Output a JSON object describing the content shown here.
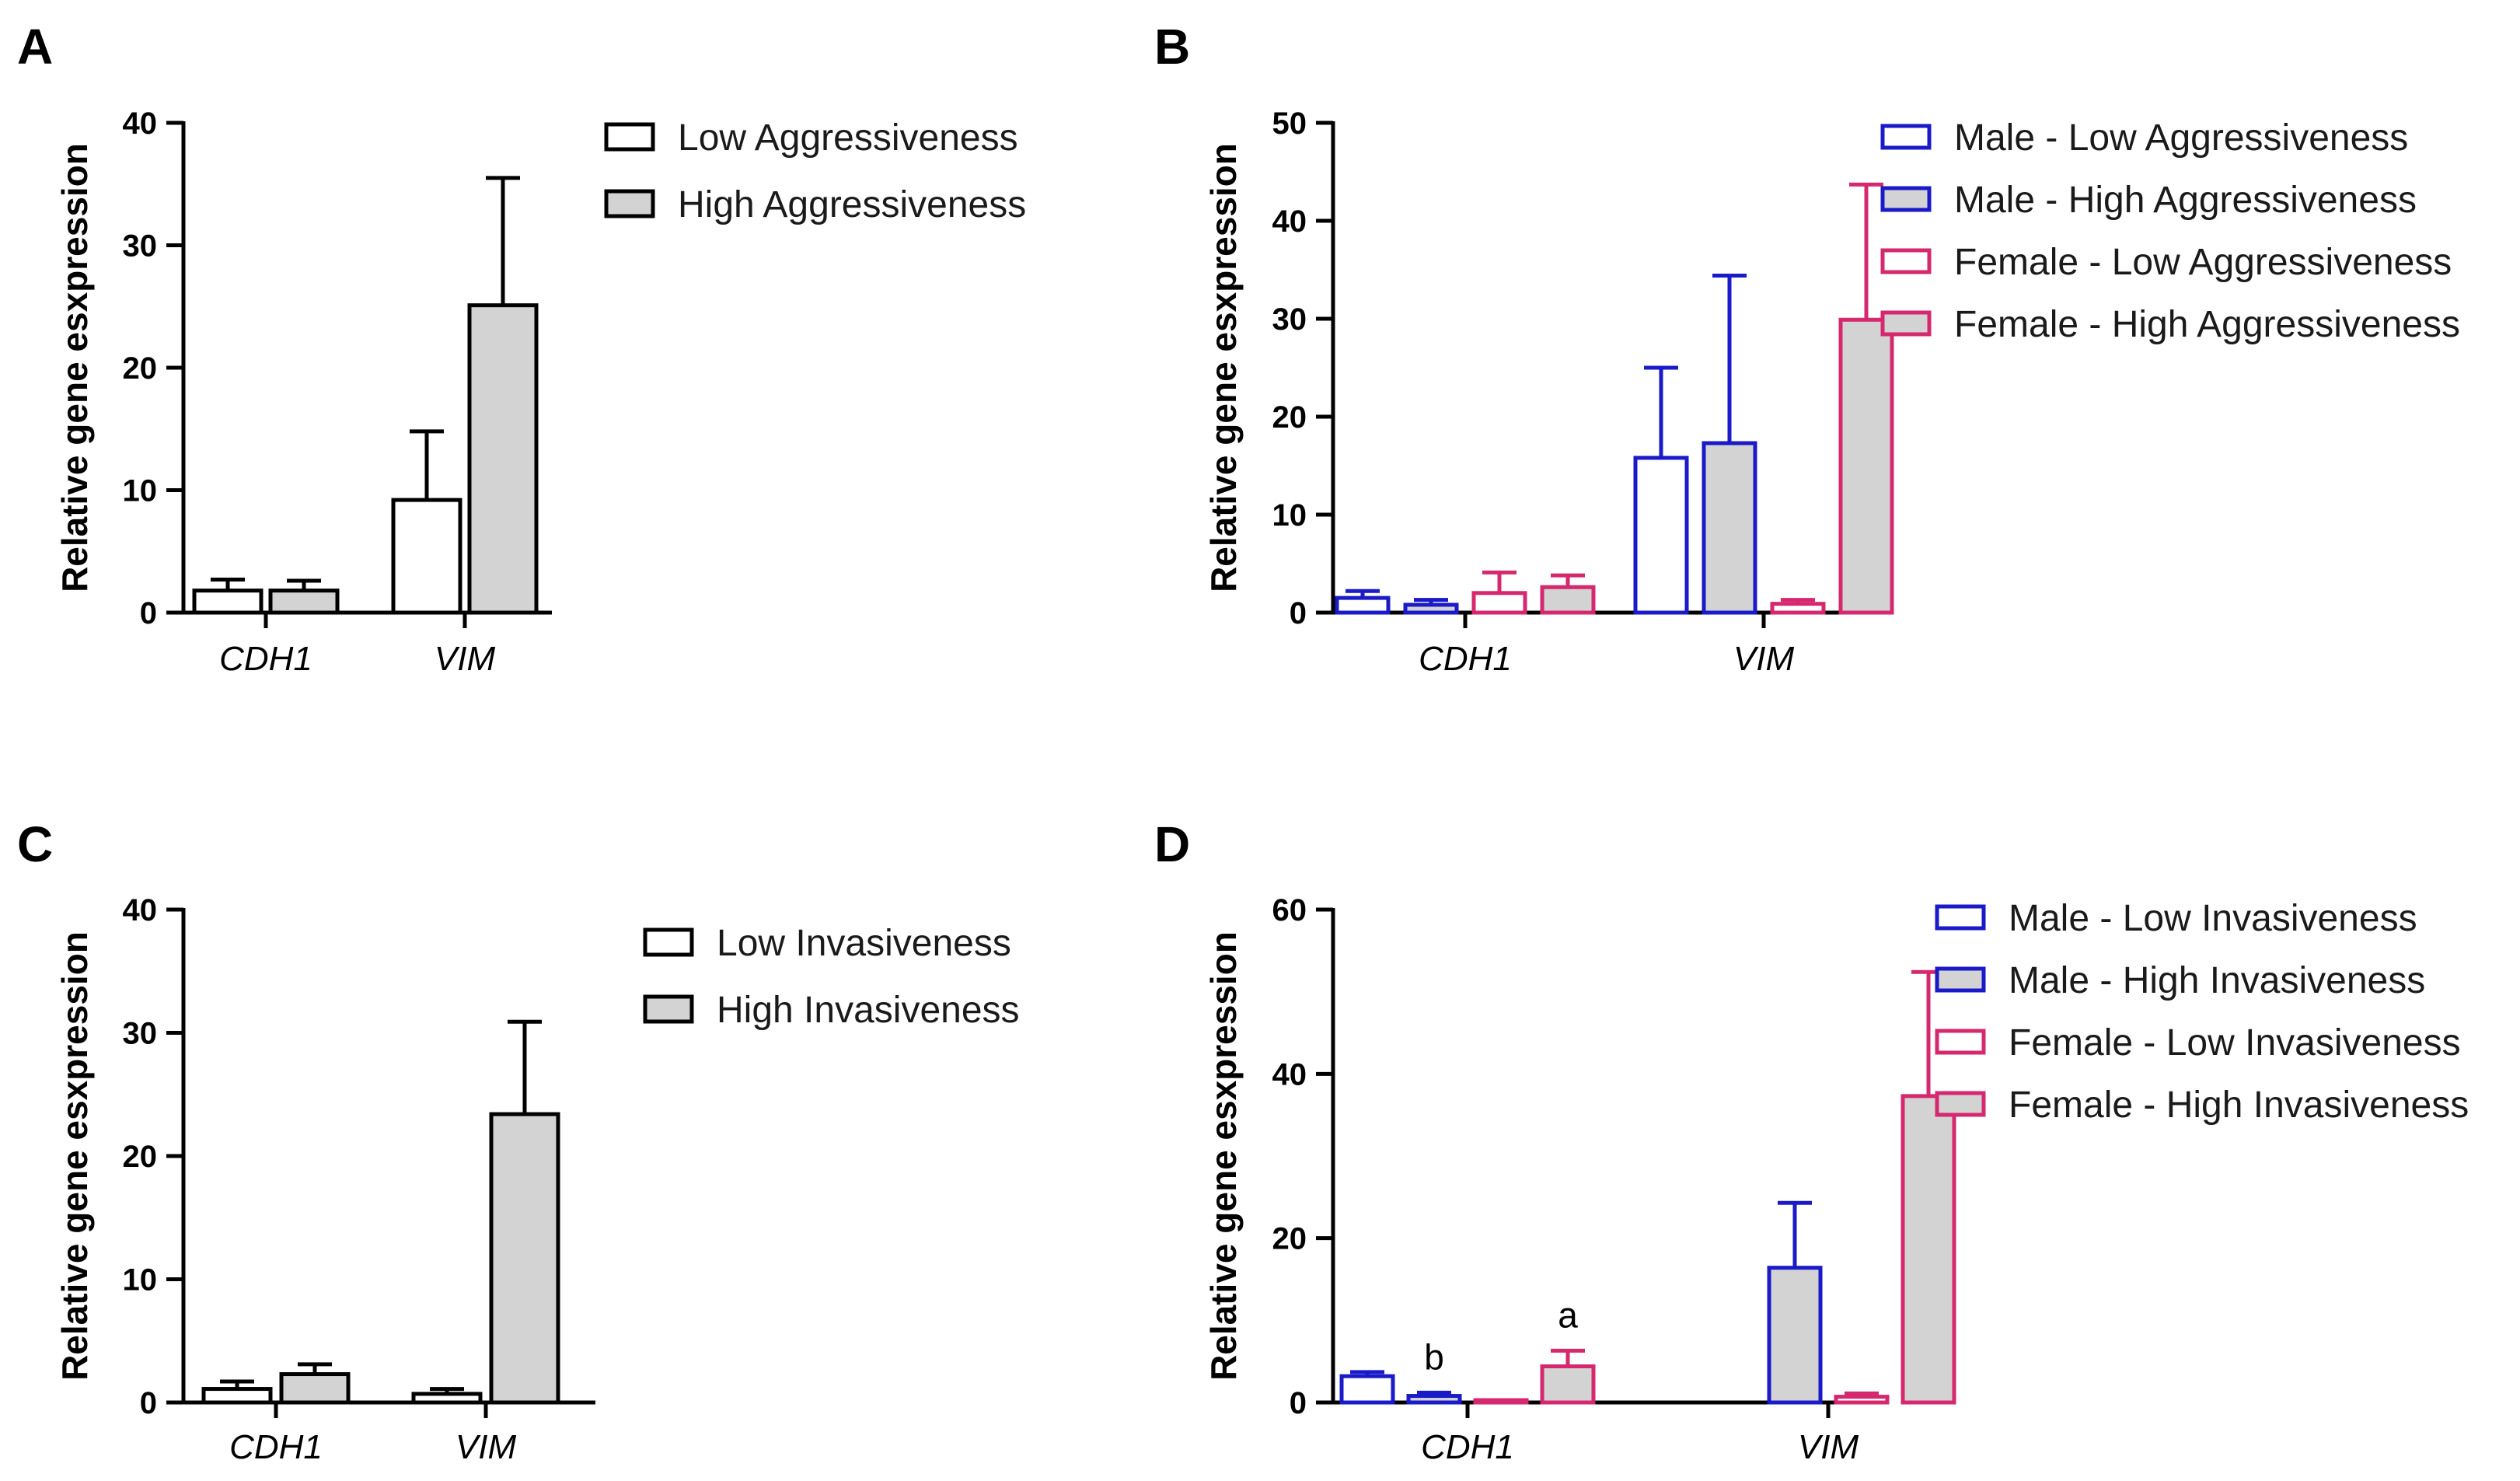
{
  "colors": {
    "white": "#ffffff",
    "gray": "#d3d3d3",
    "black": "#000000",
    "blue": "#1a1ac8",
    "pink": "#d6286e"
  },
  "chart_data": [
    {
      "panel": "A",
      "type": "bar",
      "ylabel": "Relative gene esxpression",
      "ylim": [
        0,
        40
      ],
      "yticks": [
        "0",
        "10",
        "20",
        "30",
        "40"
      ],
      "categories": [
        "CDH1",
        "VIM"
      ],
      "series": [
        {
          "name": "Low Aggressiveness",
          "fill": "white",
          "stroke": "black",
          "values": [
            1.8,
            9.2
          ],
          "errors": [
            0.9,
            5.6
          ]
        },
        {
          "name": "High Aggressiveness",
          "fill": "gray",
          "stroke": "black",
          "values": [
            1.8,
            25.1
          ],
          "errors": [
            0.8,
            10.4
          ]
        }
      ],
      "legend": [
        "Low Aggressiveness",
        "High Aggressiveness"
      ]
    },
    {
      "panel": "B",
      "type": "bar",
      "ylabel": "Relative gene esxpression",
      "ylim": [
        0,
        50
      ],
      "yticks": [
        "0",
        "10",
        "20",
        "30",
        "40",
        "50"
      ],
      "categories": [
        "CDH1",
        "VIM"
      ],
      "series": [
        {
          "name": "Male - Low Aggressiveness",
          "fill": "white",
          "stroke": "blue",
          "values": [
            1.5,
            15.8
          ],
          "errors": [
            0.7,
            9.2
          ]
        },
        {
          "name": "Male - High Aggressiveness",
          "fill": "gray",
          "stroke": "blue",
          "values": [
            0.8,
            17.3
          ],
          "errors": [
            0.5,
            17.1
          ]
        },
        {
          "name": "Female - Low Aggressiveness",
          "fill": "white",
          "stroke": "pink",
          "values": [
            2.0,
            0.9
          ],
          "errors": [
            2.1,
            0.4
          ]
        },
        {
          "name": "Female - High Aggressiveness",
          "fill": "gray",
          "stroke": "pink",
          "values": [
            2.6,
            29.9
          ],
          "errors": [
            1.2,
            13.8
          ]
        }
      ],
      "legend": [
        "Male - Low Aggressiveness",
        "Male - High Aggressiveness",
        "Female - Low Aggressiveness",
        "Female - High Aggressiveness"
      ]
    },
    {
      "panel": "C",
      "type": "bar",
      "ylabel": "Relative gene esxpression",
      "ylim": [
        0,
        40
      ],
      "yticks": [
        "0",
        "10",
        "20",
        "30",
        "40"
      ],
      "categories": [
        "CDH1",
        "VIM"
      ],
      "series": [
        {
          "name": "Low Invasiveness",
          "fill": "white",
          "stroke": "black",
          "values": [
            1.1,
            0.7
          ],
          "errors": [
            0.6,
            0.4
          ]
        },
        {
          "name": "High Invasiveness",
          "fill": "gray",
          "stroke": "black",
          "values": [
            2.3,
            23.4
          ],
          "errors": [
            0.8,
            7.5
          ]
        }
      ],
      "legend": [
        "Low Invasiveness",
        "High Invasiveness"
      ]
    },
    {
      "panel": "D",
      "type": "bar",
      "ylabel": "Relative gene esxpression",
      "ylim": [
        0,
        60
      ],
      "yticks": [
        "0",
        "20",
        "40",
        "60"
      ],
      "categories": [
        "CDH1",
        "VIM"
      ],
      "series": [
        {
          "name": "Male - Low Invasiveness",
          "fill": "white",
          "stroke": "blue",
          "values": [
            3.2,
            0
          ],
          "errors": [
            0.5,
            0
          ]
        },
        {
          "name": "Male - High Invasiveness",
          "fill": "gray",
          "stroke": "blue",
          "values": [
            0.8,
            16.4
          ],
          "errors": [
            0.4,
            7.9
          ]
        },
        {
          "name": "Female - Low Invasiveness",
          "fill": "white",
          "stroke": "pink",
          "values": [
            0.1,
            0.7
          ],
          "errors": [
            0,
            0.4
          ]
        },
        {
          "name": "Female - High Invasiveness",
          "fill": "gray",
          "stroke": "pink",
          "values": [
            4.4,
            37.3
          ],
          "errors": [
            1.9,
            15.1
          ]
        }
      ],
      "annotations": [
        {
          "text": "b",
          "category": 0,
          "series": 1
        },
        {
          "text": "a",
          "category": 0,
          "series": 3
        }
      ],
      "legend": [
        "Male - Low Invasiveness",
        "Male - High Invasiveness",
        "Female - Low Invasiveness",
        "Female - High Invasiveness"
      ]
    }
  ]
}
